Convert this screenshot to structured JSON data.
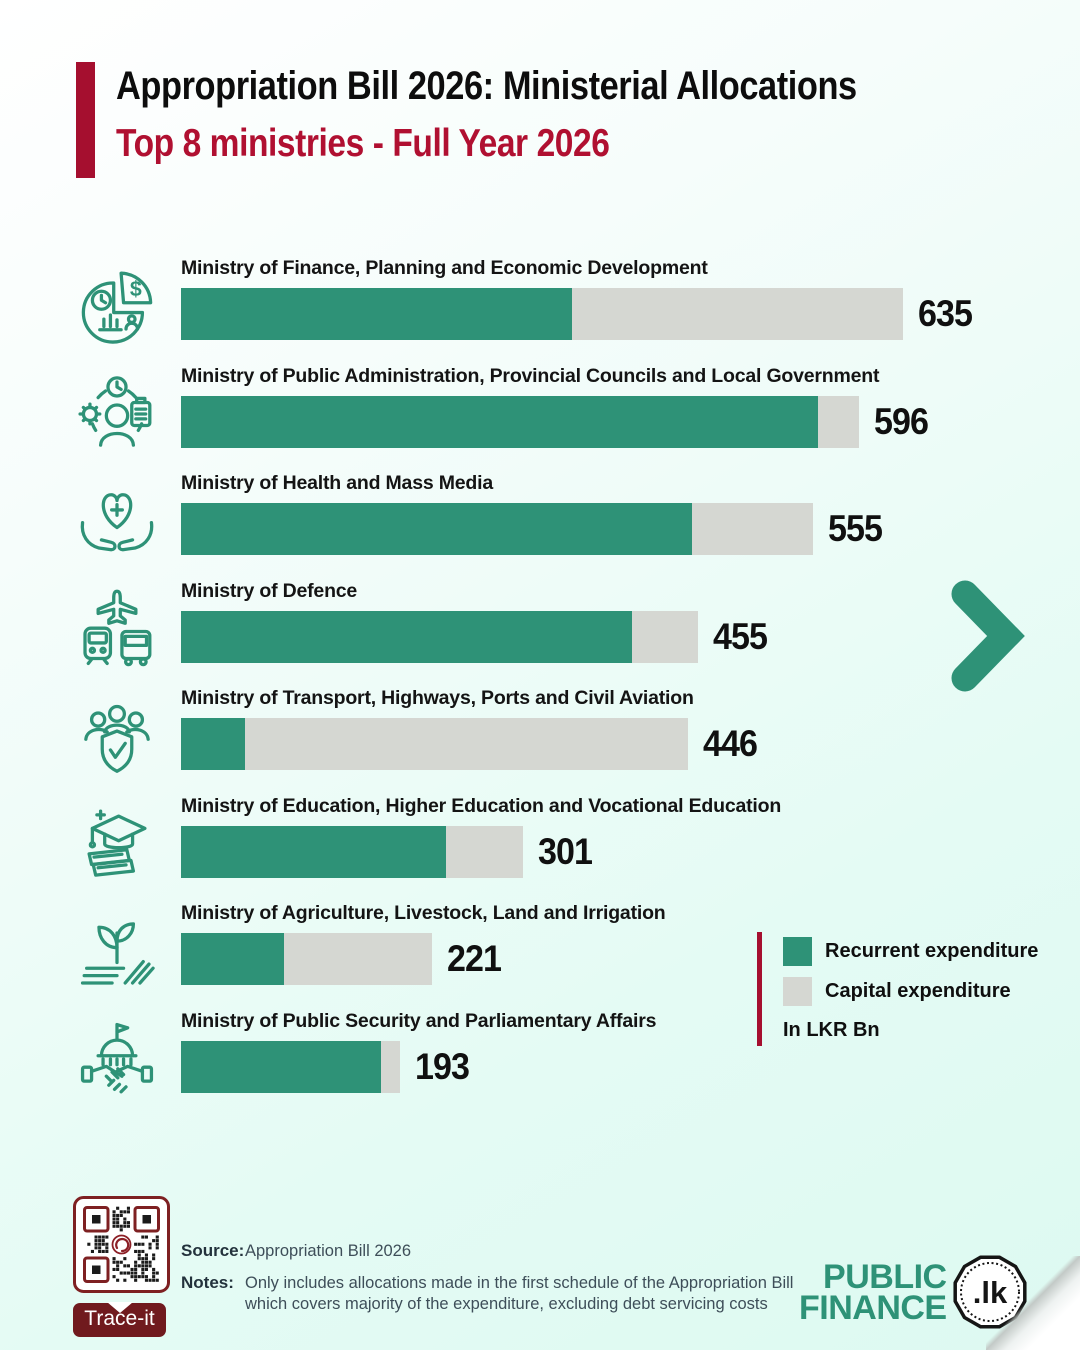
{
  "header": {
    "title": "Appropriation Bill 2026: Ministerial Allocations",
    "subtitle": "Top 8 ministries - Full Year 2026"
  },
  "colors": {
    "recurrent_teal": "#2E9277",
    "capital_gray": "#D5D7D2",
    "accent_red": "#A50F2F",
    "subtitle_red": "#B01031",
    "maroon_button": "#701A1E",
    "logo_teal": "#2E9277"
  },
  "chart_data": {
    "type": "bar",
    "orientation": "horizontal",
    "stacked": true,
    "unit": "LKR Bn",
    "categories": [
      "Ministry of Finance, Planning and Economic Development",
      "Ministry of Public Administration, Provincial Councils and Local Government",
      "Ministry of Health and Mass Media",
      "Ministry of Defence",
      "Ministry of Transport, Highways, Ports and Civil Aviation",
      "Ministry of Education, Higher Education and Vocational Education",
      "Ministry of Agriculture, Livestock, Land and Irrigation",
      "Ministry of Public Security and Parliamentary Affairs"
    ],
    "totals": [
      635,
      596,
      555,
      455,
      446,
      301,
      221,
      193
    ],
    "series": [
      {
        "name": "Recurrent expenditure",
        "color": "#2E9277",
        "values": [
          344,
          560,
          449,
          397,
          56,
          233,
          91,
          176
        ]
      },
      {
        "name": "Capital expenditure",
        "color": "#D5D7D2",
        "values": [
          291,
          36,
          106,
          58,
          390,
          68,
          130,
          17
        ]
      }
    ],
    "icons": [
      "finance-allocation-pie-icon",
      "public-administration-person-icon",
      "health-hands-heart-icon",
      "transport-vehicles-icon",
      "community-shield-icon",
      "education-cap-books-icon",
      "agriculture-plant-icon",
      "parliament-handshake-icon"
    ],
    "legend_position": "right-bottom",
    "xlim": [
      0,
      635
    ]
  },
  "legend": {
    "items": [
      {
        "label": "Recurrent expenditure",
        "swatch": "#2E9277"
      },
      {
        "label": "Capital expenditure",
        "swatch": "#D5D7D2"
      }
    ],
    "unit_label": "In LKR Bn"
  },
  "nav": {
    "next_icon": "chevron-right-icon"
  },
  "footer": {
    "qr_button_label": "Trace-it",
    "source_label": "Source:",
    "source_value": "Appropriation Bill 2026",
    "notes_label": "Notes:",
    "notes_value": "Only includes allocations made in the first schedule of the Appropriation Bill which covers majority of the expenditure, excluding debt servicing costs",
    "logo_line1": "PUBLIC",
    "logo_line2": "FINANCE",
    "logo_badge": ".lk"
  }
}
